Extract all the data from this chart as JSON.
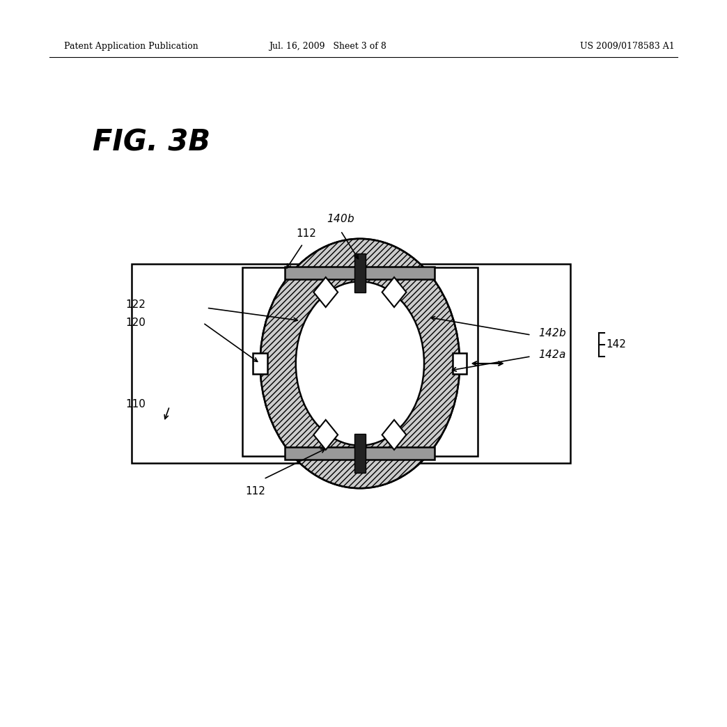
{
  "bg_color": "#ffffff",
  "header_left": "Patent Application Publication",
  "header_mid": "Jul. 16, 2009   Sheet 3 of 8",
  "header_right": "US 2009/0178583 A1",
  "fig_label": "FIG. 3B",
  "line_color": "#000000"
}
